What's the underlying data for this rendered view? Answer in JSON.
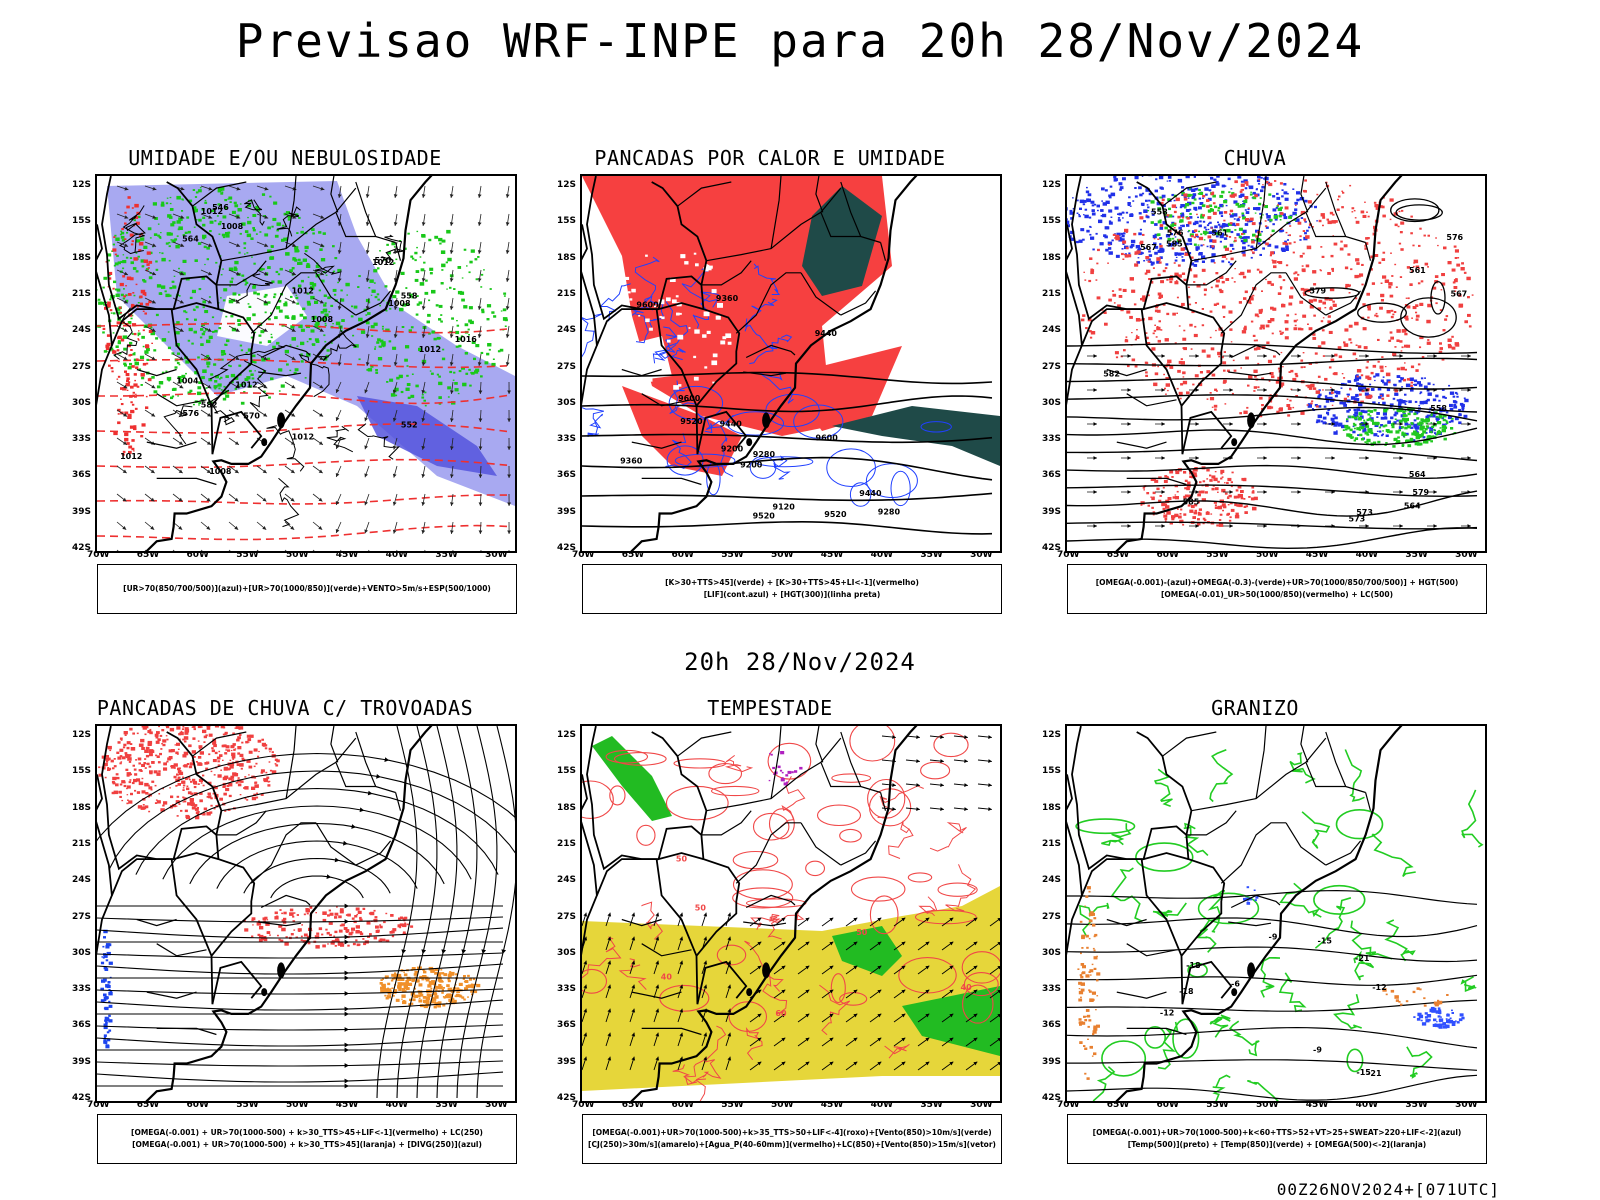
{
  "header": {
    "title": "Previsao WRF-INPE  para 20h 28/Nov/2024",
    "mid_title": "20h 28/Nov/2024",
    "footer": "00Z26NOV2024+[071UTC]"
  },
  "axes": {
    "lat_labels": [
      "12S",
      "15S",
      "18S",
      "21S",
      "24S",
      "27S",
      "30S",
      "33S",
      "36S",
      "39S",
      "42S"
    ],
    "lon_labels": [
      "70W",
      "65W",
      "60W",
      "55W",
      "50W",
      "45W",
      "40W",
      "35W",
      "30W"
    ]
  },
  "panels": [
    {
      "id": "umidade",
      "title": "UMIDADE E/OU NEBULOSIDADE",
      "legend": [
        "[UR>70(850/700/500)](azul)+[UR>70(1000/850)](verde)+VENTO>5m/s+ESP(500/1000)"
      ],
      "labels": [
        "1008",
        "1012",
        "1008",
        "1012",
        "1004",
        "1008",
        "1012",
        "1016",
        "1012",
        "1012",
        "1008",
        "1012",
        "1012",
        "576",
        "582",
        "570",
        "552",
        "558",
        "564",
        "546",
        "570"
      ]
    },
    {
      "id": "pancadas-calor",
      "title": "PANCADAS POR CALOR E UMIDADE",
      "legend": [
        "[K>30+TTS>45](verde) + [K>30+TTS>45+LI<-1](vermelho)",
        "[LIF](cont.azul) + [HGT(300)](linha preta)"
      ],
      "labels": [
        "9600",
        "9520",
        "9440",
        "9600",
        "9520",
        "9440",
        "9360",
        "9280",
        "9200",
        "9120",
        "9600",
        "9520",
        "9440",
        "9360",
        "9280",
        "9200"
      ]
    },
    {
      "id": "chuva",
      "title": "CHUVA",
      "legend": [
        "[OMEGA(-0.001)-(azul)+OMEGA(-0.3)-(verde)+UR>70(1000/850/700/500)] + HGT(500)",
        "[OMEGA(-0.01)_UR>50(1000/850)(vermelho) + LC(500)"
      ],
      "labels": [
        "585",
        "585",
        "582",
        "579",
        "579",
        "576",
        "573",
        "567",
        "564",
        "561",
        "558",
        "576",
        "573",
        "567",
        "564",
        "561",
        "558"
      ]
    },
    {
      "id": "trovoadas",
      "title": "PANCADAS DE CHUVA C/ TROVOADAS",
      "legend": [
        "[OMEGA(-0.001) + UR>70(1000-500) + k>30_TTS>45+LIF<-1](vermelho) + LC(250)",
        "[OMEGA(-0.001) + UR>70(1000-500) + k>30_TTS>45](laranja) + [DIVG(250)](azul)"
      ],
      "labels": []
    },
    {
      "id": "tempestade",
      "title": "TEMPESTADE",
      "legend": [
        "[OMEGA(-0.001)+UR>70(1000-500)+k>35_TTS>50+LIF<-4](roxo)+[Vento(850)>10m/s](verde)",
        "[CJ(250)>30m/s](amarelo)+[Agua_P(40-60mm)](vermelho)+LC(850)+[Vento(850)>15m/s](vetor)"
      ],
      "labels": [
        "50",
        "40",
        "50",
        "60",
        "40",
        "50"
      ]
    },
    {
      "id": "granizo",
      "title": "GRANIZO",
      "legend": [
        "[OMEGA(-0.001)+UR>70(1000-500)+k<60+TTS>52+VT>25+SWEAT>220+LIF<-2](azul)",
        "[Temp(500)](preto) + [Temp(850)](verde) + [OMEGA(500)<-2](laranja)"
      ],
      "labels": [
        "-6",
        "-9",
        "-12",
        "-15",
        "-18",
        "-21",
        "-12",
        "-15",
        "-18",
        "-21",
        "-9"
      ]
    }
  ],
  "colors": {
    "coast": "#000000",
    "umid_blue": "#9fa0f0",
    "umid_blue_dark": "#5555dd",
    "umid_green": "#19c819",
    "red_dash": "#ee3030",
    "calor_red": "#f64040",
    "calor_teal": "#1f4a48",
    "lif_blue": "#2040ff",
    "chuva_blue": "#2030e8",
    "chuva_green": "#20c820",
    "trov_red": "#f04040",
    "trov_orange": "#f0902a",
    "temp_yellow": "#e6d63a",
    "temp_green": "#22bb22",
    "temp_red": "#f04848",
    "temp_purple": "#b020c0",
    "gran_green": "#22cc22",
    "gran_orange": "#e88030",
    "gran_blue": "#3050ff"
  }
}
